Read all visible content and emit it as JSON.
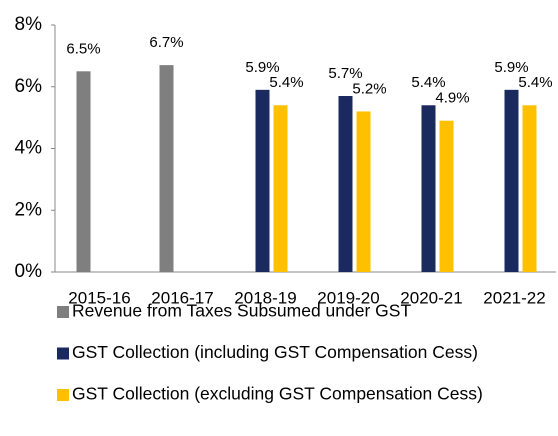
{
  "chart_data": {
    "type": "bar",
    "categories": [
      "2015-16",
      "2016-17",
      "2018-19",
      "2019-20",
      "2020-21",
      "2021-22"
    ],
    "series": [
      {
        "name": "Revenue from Taxes Subsumed under GST",
        "color": "#7f7f7f",
        "values": [
          6.5,
          6.7,
          null,
          null,
          null,
          null
        ],
        "value_labels": [
          "6.5%",
          "6.7%",
          null,
          null,
          null,
          null
        ]
      },
      {
        "name": "GST Collection (including GST Compensation Cess)",
        "color": "#1b2a5e",
        "values": [
          null,
          null,
          5.9,
          5.7,
          5.4,
          5.9
        ],
        "value_labels": [
          null,
          null,
          "5.9%",
          "5.7%",
          "5.4%",
          "5.9%"
        ]
      },
      {
        "name": "GST Collection (excluding GST Compensation Cess)",
        "color": "#ffc000",
        "values": [
          null,
          null,
          5.4,
          5.2,
          4.9,
          5.4
        ],
        "value_labels": [
          null,
          null,
          "5.4%",
          "5.2%",
          "4.9%",
          "5.4%"
        ]
      }
    ],
    "ylim": [
      0,
      8
    ],
    "yticks": [
      {
        "value": 0,
        "label": "0%"
      },
      {
        "value": 2,
        "label": "2%"
      },
      {
        "value": 4,
        "label": "4%"
      },
      {
        "value": 6,
        "label": "6%"
      },
      {
        "value": 8,
        "label": "8%"
      }
    ],
    "grid": false
  }
}
